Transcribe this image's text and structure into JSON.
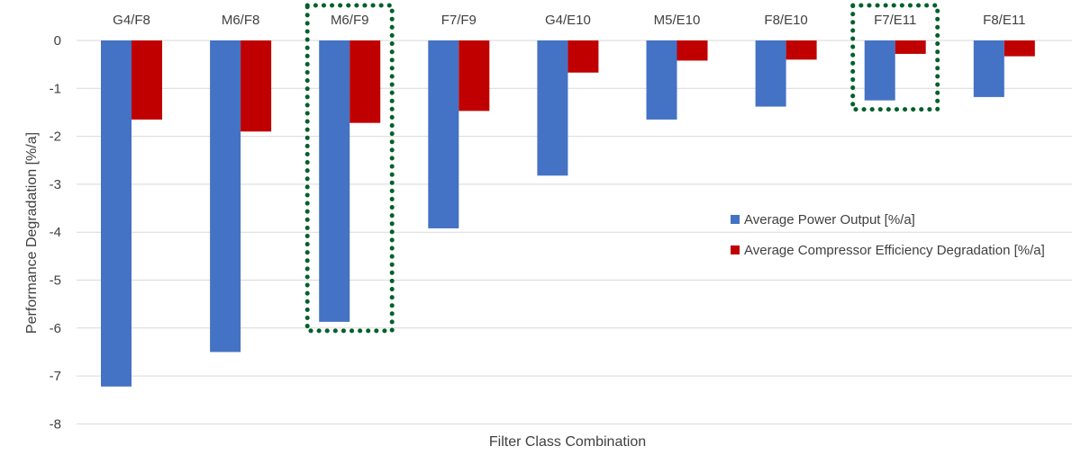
{
  "chart_data": {
    "type": "bar",
    "title": "",
    "xlabel": "Filter Class Combination",
    "ylabel": "Performance Degradation [%/a]",
    "categories": [
      "G4/F8",
      "M6/F8",
      "M6/F9",
      "F7/F9",
      "G4/E10",
      "M5/E10",
      "F8/E10",
      "F7/E11",
      "F8/E11"
    ],
    "series": [
      {
        "name": "Average Power Output [%/a]",
        "color": "#4472c4",
        "values": [
          -7.22,
          -6.5,
          -5.87,
          -3.92,
          -2.82,
          -1.65,
          -1.38,
          -1.25,
          -1.18
        ]
      },
      {
        "name": "Average Compressor Efficiency Degradation [%/a]",
        "color": "#c00000",
        "values": [
          -1.65,
          -1.9,
          -1.72,
          -1.47,
          -0.67,
          -0.42,
          -0.4,
          -0.28,
          -0.33
        ]
      }
    ],
    "ylim": [
      -8,
      0
    ],
    "yticks": [
      0,
      -1,
      -2,
      -3,
      -4,
      -5,
      -6,
      -7,
      -8
    ],
    "grid": true,
    "gridColor": "#d9d9d9",
    "legend_position": "right",
    "category_axis_position": "top",
    "highlighted_categories": [
      "M6/F9",
      "F7/E11"
    ],
    "highlight_color": "#00602b"
  }
}
